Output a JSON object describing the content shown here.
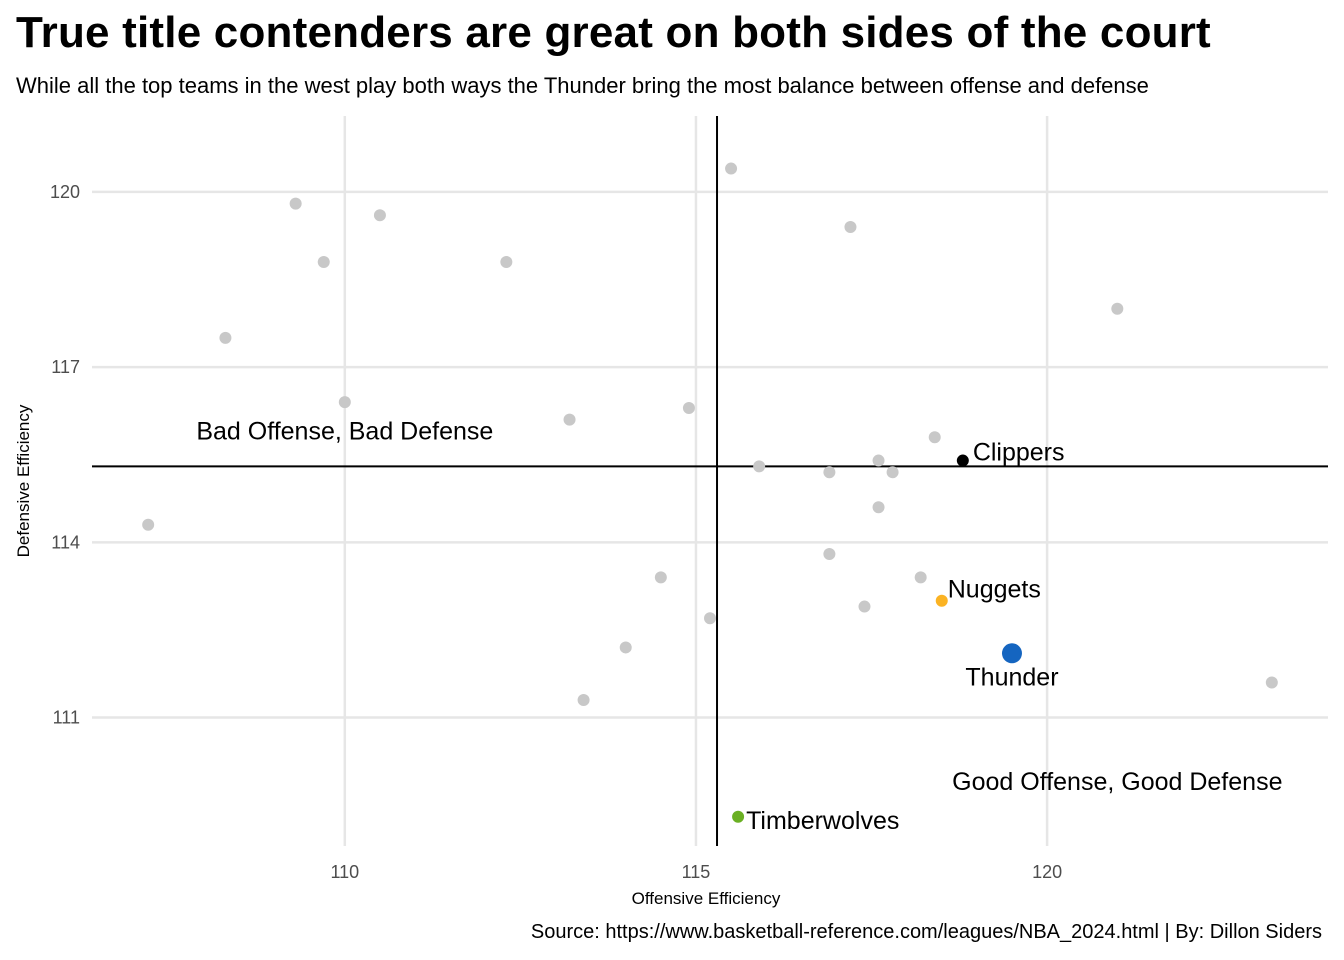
{
  "title": "True title contenders are great on both sides of the court",
  "subtitle": "While all the top teams in the west play both ways the Thunder bring the most balance between offense and defense",
  "caption": "Source: https://www.basketball-reference.com/leagues/NBA_2024.html | By: Dillon Siders",
  "chart_data": {
    "type": "scatter",
    "xlabel": "Offensive Efficiency",
    "ylabel": "Defensive Efficiency",
    "xlim": [
      106.4,
      124.0
    ],
    "ylim": [
      108.8,
      121.3
    ],
    "x_ticks": [
      110,
      115,
      120
    ],
    "y_ticks": [
      111,
      114,
      117,
      120
    ],
    "grid": true,
    "reference_lines": {
      "x": 115.3,
      "y": 115.3
    },
    "colors": {
      "other": "#c8c8c8",
      "Thunder": "#1565c0",
      "Nuggets": "#fbb323",
      "Clippers": "#000000",
      "Timberwolves": "#6ab023"
    },
    "other_points": [
      {
        "x": 107.2,
        "y": 114.3
      },
      {
        "x": 108.3,
        "y": 117.5
      },
      {
        "x": 109.3,
        "y": 119.8
      },
      {
        "x": 109.7,
        "y": 118.8
      },
      {
        "x": 110.0,
        "y": 116.4
      },
      {
        "x": 110.5,
        "y": 119.6
      },
      {
        "x": 112.3,
        "y": 118.8
      },
      {
        "x": 113.2,
        "y": 116.1
      },
      {
        "x": 113.4,
        "y": 111.3
      },
      {
        "x": 114.0,
        "y": 112.2
      },
      {
        "x": 114.5,
        "y": 113.4
      },
      {
        "x": 114.9,
        "y": 116.3
      },
      {
        "x": 115.2,
        "y": 112.7
      },
      {
        "x": 115.5,
        "y": 120.4
      },
      {
        "x": 115.9,
        "y": 115.3
      },
      {
        "x": 116.9,
        "y": 115.2
      },
      {
        "x": 116.9,
        "y": 113.8
      },
      {
        "x": 117.2,
        "y": 119.4
      },
      {
        "x": 117.4,
        "y": 112.9
      },
      {
        "x": 117.6,
        "y": 115.4
      },
      {
        "x": 117.6,
        "y": 114.6
      },
      {
        "x": 117.8,
        "y": 115.2
      },
      {
        "x": 118.2,
        "y": 113.4
      },
      {
        "x": 118.4,
        "y": 115.8
      },
      {
        "x": 121.0,
        "y": 118.0
      },
      {
        "x": 123.2,
        "y": 111.6
      }
    ],
    "highlighted": [
      {
        "name": "Clippers",
        "x": 118.8,
        "y": 115.4
      },
      {
        "name": "Nuggets",
        "x": 118.5,
        "y": 113.0
      },
      {
        "name": "Thunder",
        "x": 119.5,
        "y": 112.1
      },
      {
        "name": "Timberwolves",
        "x": 115.6,
        "y": 109.3
      }
    ],
    "annotations": [
      {
        "text": "Bad Offense, Bad Defense",
        "x": 110.0,
        "y": 115.9
      },
      {
        "text": "Good Offense, Good Defense",
        "x": 121.0,
        "y": 109.9
      }
    ]
  }
}
